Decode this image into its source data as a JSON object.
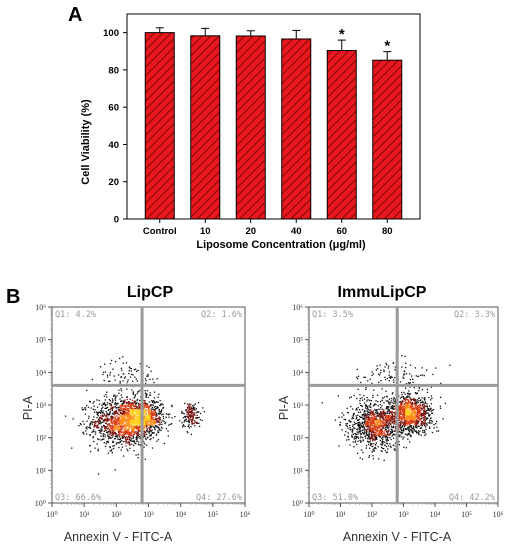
{
  "panel_labels": {
    "a": "A",
    "b": "B"
  },
  "chart_data": [
    {
      "type": "bar",
      "categories": [
        "Control",
        "10",
        "20",
        "40",
        "60",
        "80"
      ],
      "values": [
        100,
        98.3,
        98.2,
        96.6,
        90.4,
        85.2
      ],
      "errors": [
        2.6,
        4.0,
        2.8,
        4.6,
        5.6,
        4.6
      ],
      "significance": [
        "",
        "",
        "",
        "",
        "*",
        "*"
      ],
      "xlabel": "Liposome Concentration (μg/ml)",
      "ylabel": "Cell Viability (%)",
      "ylim": [
        0,
        110
      ],
      "yticks": [
        0,
        20,
        40,
        60,
        80,
        100
      ],
      "bar_color": "#e8191e",
      "hatch_color": "#6b0000",
      "grid": false
    },
    {
      "type": "scatter",
      "title": "LipCP",
      "xlabel": "Annexin V - FITC-A",
      "ylabel": "PI-A",
      "xscale": "log",
      "yscale": "log",
      "ticks": [
        "10⁰",
        "10¹",
        "10²",
        "10³",
        "10⁴",
        "10⁵",
        "10⁶"
      ],
      "gate_x_decade": 2.8,
      "gate_y_decade": 3.6,
      "quadrants": [
        {
          "label": "Q1: 4.2%",
          "position": "top-left"
        },
        {
          "label": "Q2: 1.6%",
          "position": "top-right"
        },
        {
          "label": "Q3: 66.6%",
          "position": "bottom-left"
        },
        {
          "label": "Q4: 27.6%",
          "position": "bottom-right"
        }
      ],
      "clusters": [
        {
          "x": 2.2,
          "y": 2.5,
          "sx": 0.5,
          "sy": 0.38,
          "n": 1300
        },
        {
          "x": 2.85,
          "y": 2.65,
          "sx": 0.3,
          "sy": 0.28,
          "n": 650
        },
        {
          "x": 4.3,
          "y": 2.7,
          "sx": 0.15,
          "sy": 0.2,
          "n": 160
        },
        {
          "x": 2.4,
          "y": 3.9,
          "sx": 0.5,
          "sy": 0.25,
          "n": 90
        }
      ]
    },
    {
      "type": "scatter",
      "title": "ImmuLipCP",
      "xlabel": "Annexin V - FITC-A",
      "ylabel": "PI-A",
      "xscale": "log",
      "yscale": "log",
      "ticks": [
        "10⁰",
        "10¹",
        "10²",
        "10³",
        "10⁴",
        "10⁵",
        "10⁶"
      ],
      "gate_x_decade": 2.8,
      "gate_y_decade": 3.6,
      "quadrants": [
        {
          "label": "Q1: 3.5%",
          "position": "top-left"
        },
        {
          "label": "Q2: 3.3%",
          "position": "top-right"
        },
        {
          "label": "Q3: 51.0%",
          "position": "bottom-left"
        },
        {
          "label": "Q4: 42.2%",
          "position": "bottom-right"
        }
      ],
      "clusters": [
        {
          "x": 2.1,
          "y": 2.4,
          "sx": 0.45,
          "sy": 0.38,
          "n": 1000
        },
        {
          "x": 3.2,
          "y": 2.75,
          "sx": 0.38,
          "sy": 0.3,
          "n": 1000
        },
        {
          "x": 2.7,
          "y": 3.9,
          "sx": 0.6,
          "sy": 0.3,
          "n": 110
        }
      ]
    }
  ]
}
